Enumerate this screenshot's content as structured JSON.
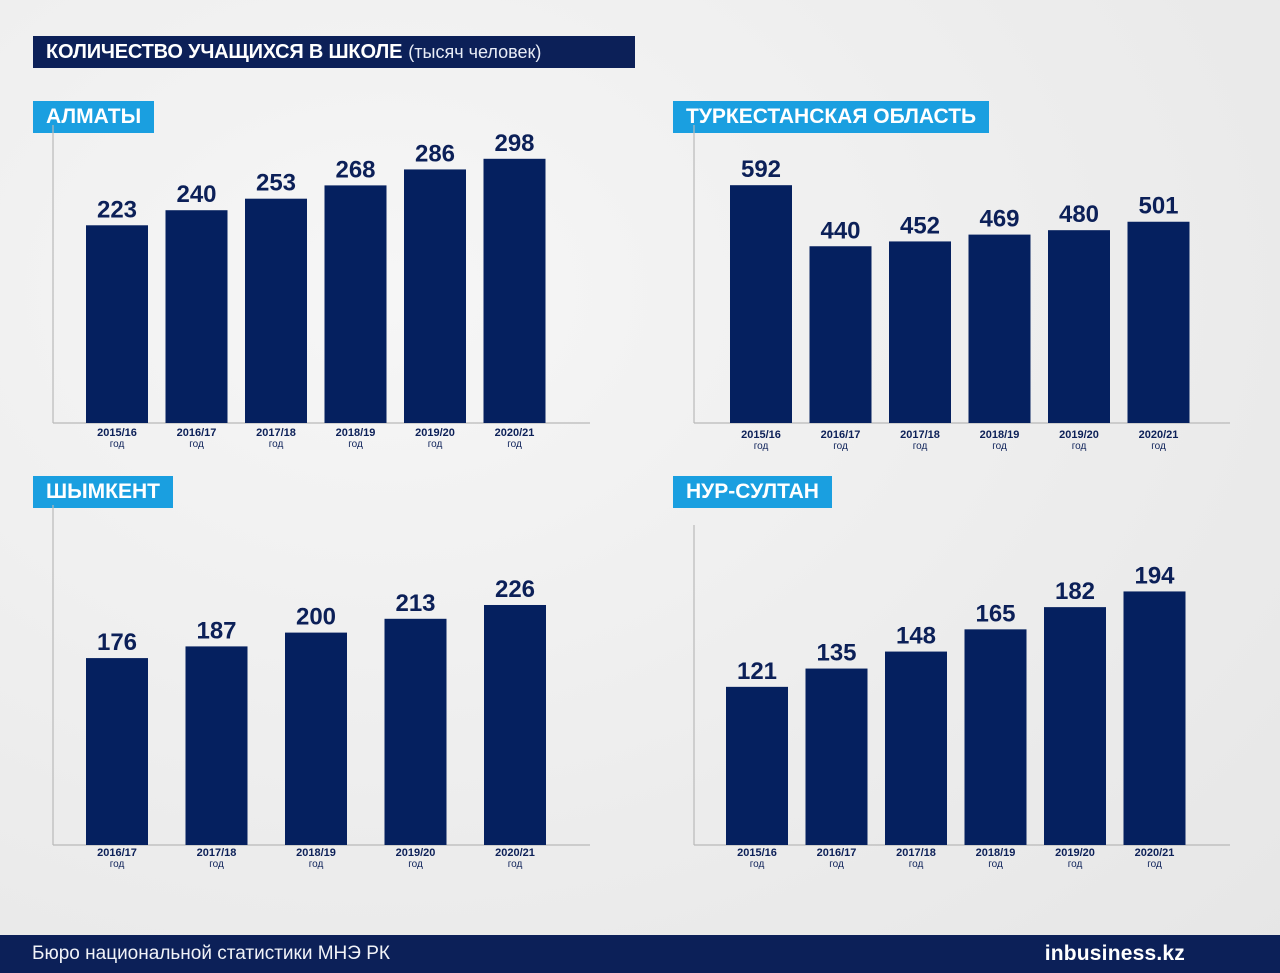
{
  "title": {
    "main": "КОЛИЧЕСТВО УЧАЩИХСЯ В ШКОЛЕ",
    "unit": "(тысяч человек)"
  },
  "colors": {
    "bar": "#05205f",
    "title_bg": "#0c2058",
    "label_bg": "#1a9fe0",
    "background": "#efefef"
  },
  "chart_data": [
    {
      "type": "bar",
      "title": "АЛМАТЫ",
      "categories": [
        "2015/16",
        "2016/17",
        "2017/18",
        "2018/19",
        "2019/20",
        "2020/21"
      ],
      "category_unit": "год",
      "values": [
        223,
        240,
        253,
        268,
        286,
        298
      ],
      "xlabel": "",
      "ylabel": "",
      "grid": false
    },
    {
      "type": "bar",
      "title": "ТУРКЕСТАНСКАЯ ОБЛАСТЬ",
      "categories": [
        "2015/16",
        "2016/17",
        "2017/18",
        "2018/19",
        "2019/20",
        "2020/21"
      ],
      "category_unit": "год",
      "values": [
        592,
        440,
        452,
        469,
        480,
        501
      ],
      "xlabel": "",
      "ylabel": "",
      "grid": false
    },
    {
      "type": "bar",
      "title": "ШЫМКЕНТ",
      "categories": [
        "2016/17",
        "2017/18",
        "2018/19",
        "2019/20",
        "2020/21"
      ],
      "category_unit": "год",
      "values": [
        176,
        187,
        200,
        213,
        226
      ],
      "xlabel": "",
      "ylabel": "",
      "grid": false
    },
    {
      "type": "bar",
      "title": "НУР-СУЛТАН",
      "categories": [
        "2015/16",
        "2016/17",
        "2017/18",
        "2018/19",
        "2019/20",
        "2020/21"
      ],
      "category_unit": "год",
      "values": [
        121,
        135,
        148,
        165,
        182,
        194
      ],
      "xlabel": "",
      "ylabel": "",
      "grid": false
    }
  ],
  "footer": {
    "source": "Бюро национальной статистики МНЭ РК",
    "logo_prefix": "in",
    "logo_rest": "business.kz"
  }
}
